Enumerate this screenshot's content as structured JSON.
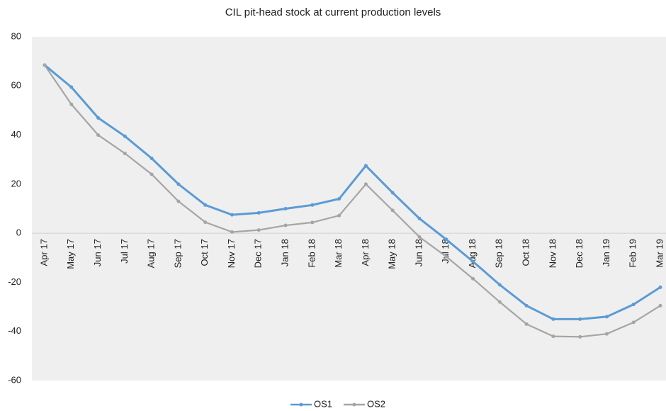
{
  "chart_data": {
    "type": "line",
    "title": "CIL pit-head stock at current production levels",
    "categories": [
      "Apr 17",
      "May 17",
      "Jun 17",
      "Jul 17",
      "Aug 17",
      "Sep 17",
      "Oct 17",
      "Nov 17",
      "Dec 17",
      "Jan 18",
      "Feb 18",
      "Mar 18",
      "Apr 18",
      "May 18",
      "Jun 18",
      "Jul 18",
      "Aug 18",
      "Sep 18",
      "Oct 18",
      "Nov 18",
      "Dec 18",
      "Jan 19",
      "Feb 19",
      "Mar 19"
    ],
    "series": [
      {
        "name": "OS1",
        "color": "#5b9bd5",
        "values": [
          68.5,
          59.5,
          47,
          39.5,
          30.5,
          20,
          11.5,
          7.5,
          8.3,
          10,
          11.5,
          14,
          27.5,
          16.5,
          6,
          -2.5,
          -11.5,
          -21,
          -29.5,
          -35,
          -35,
          -34,
          -29,
          -22
        ]
      },
      {
        "name": "OS2",
        "color": "#a5a5a5",
        "values": [
          68.5,
          52.5,
          40,
          32.5,
          24,
          13,
          4.5,
          0.5,
          1.3,
          3.2,
          4.4,
          7.2,
          20,
          9.3,
          -1.5,
          -9.5,
          -18.5,
          -28,
          -37,
          -42,
          -42.2,
          -41,
          -36.3,
          -29.5
        ]
      }
    ],
    "ylim": [
      -60,
      80
    ],
    "yticks": [
      -60,
      -40,
      -20,
      0,
      20,
      40,
      60,
      80
    ],
    "legend": "bottom"
  }
}
